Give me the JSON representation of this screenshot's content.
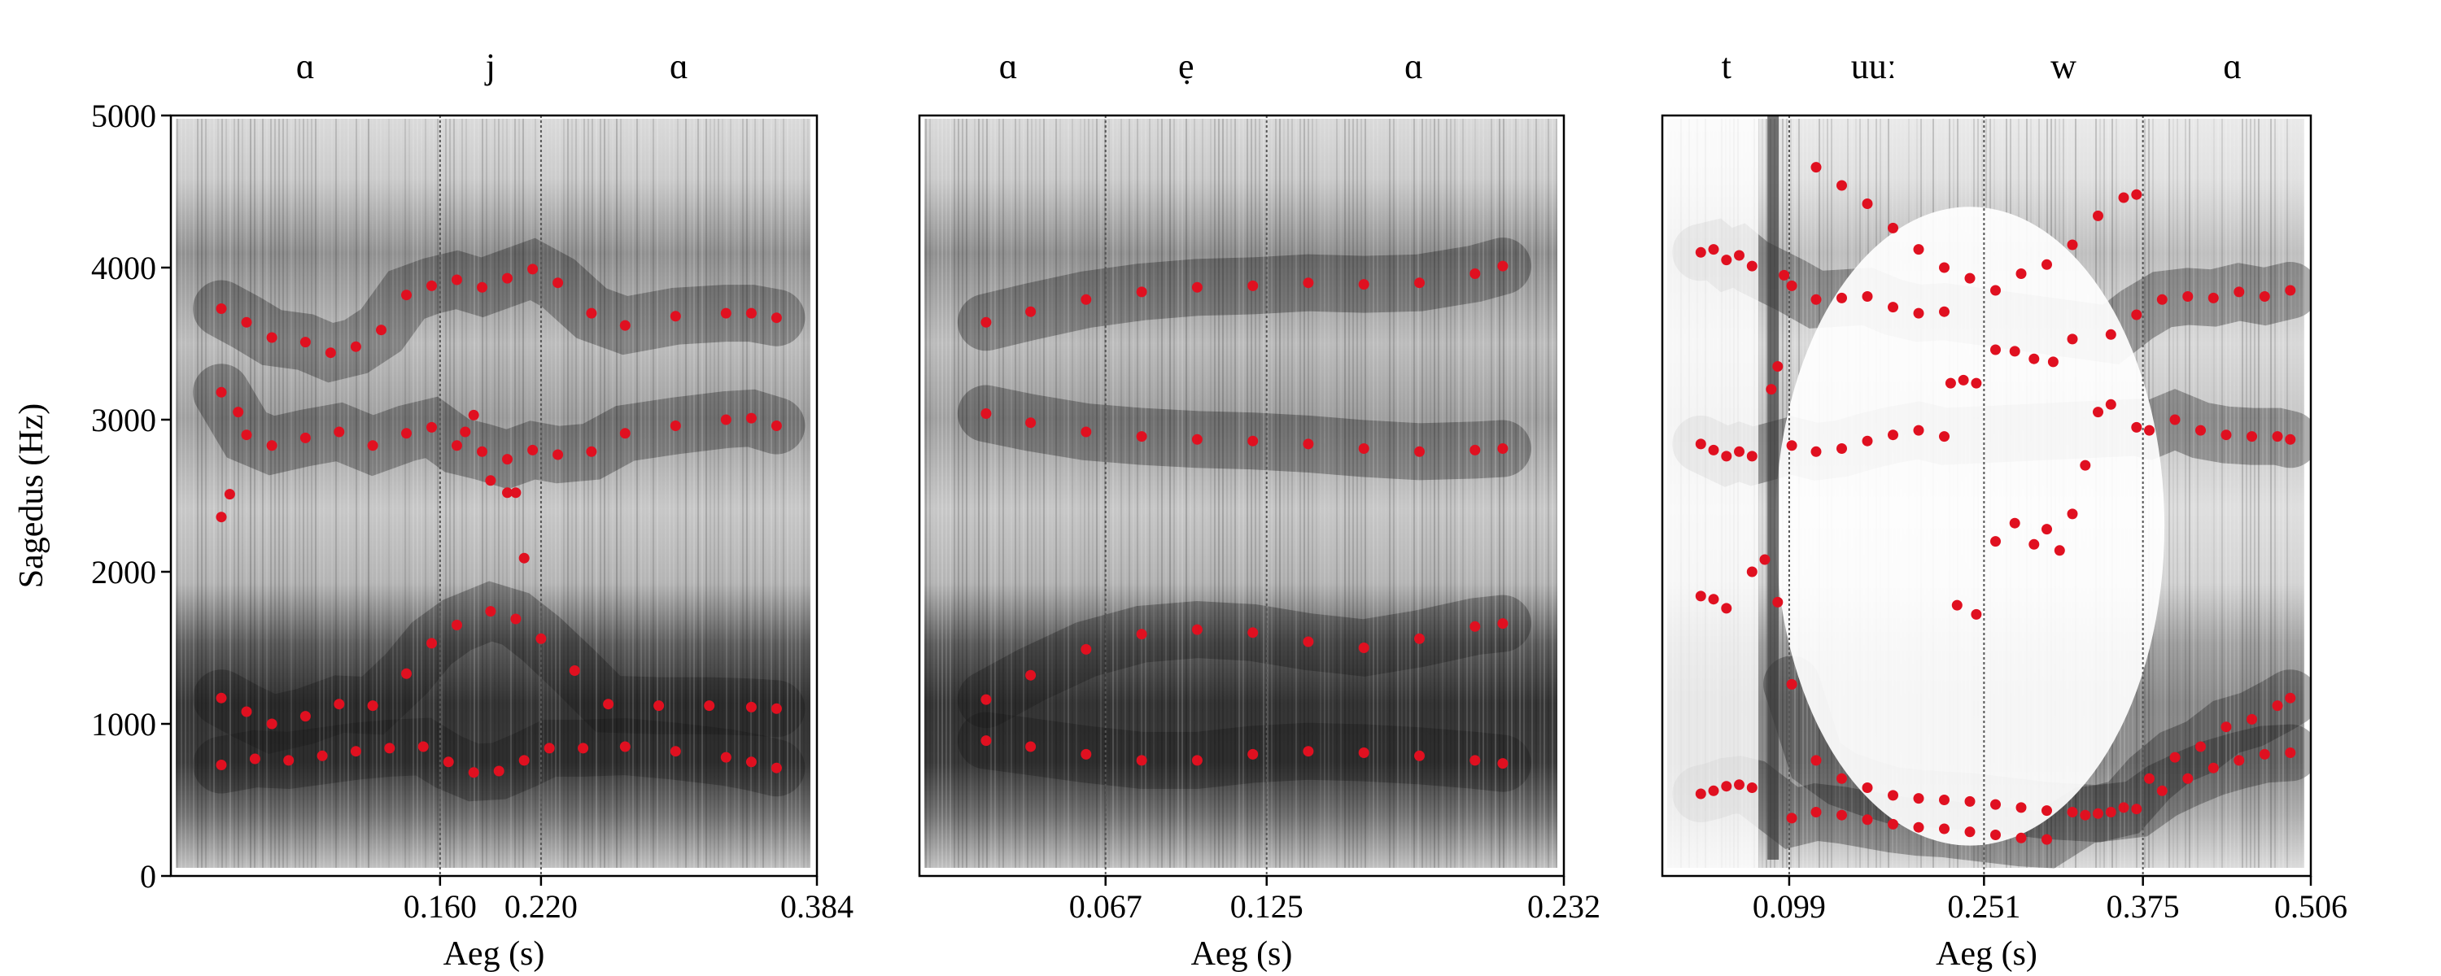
{
  "colors": {
    "formant": "#e01020",
    "spectrogram": "#1a1a1a",
    "axis": "#000000",
    "boundary": "#555555"
  },
  "chart_data": [
    {
      "type": "scatter",
      "xlabel": "Aeg (s)",
      "ylabel": "Sagedus (Hz)",
      "xlim": [
        0,
        0.384
      ],
      "ylim": [
        0,
        5000
      ],
      "yticks": [
        0,
        1000,
        2000,
        3000,
        4000,
        5000
      ],
      "xticks": [
        0.16,
        0.22,
        0.384
      ],
      "xtick_labels": [
        "0.160",
        "0.220",
        "0.384"
      ],
      "boundaries": [
        0.16,
        0.22
      ],
      "segments": [
        {
          "label": "ɑ",
          "mid": 0.08
        },
        {
          "label": "j",
          "mid": 0.19
        },
        {
          "label": "ɑ",
          "mid": 0.302
        }
      ],
      "series": [
        {
          "x": [
            0.03,
            0.05,
            0.07,
            0.09,
            0.11,
            0.13,
            0.15,
            0.165,
            0.18,
            0.195,
            0.21,
            0.225,
            0.245,
            0.27,
            0.3,
            0.33,
            0.345,
            0.36
          ],
          "y": [
            730,
            770,
            760,
            790,
            820,
            840,
            850,
            750,
            680,
            690,
            760,
            840,
            840,
            850,
            820,
            780,
            750,
            710
          ]
        },
        {
          "x": [
            0.03,
            0.045,
            0.06,
            0.08,
            0.1,
            0.12,
            0.14,
            0.155,
            0.17,
            0.19,
            0.205,
            0.22,
            0.24,
            0.26,
            0.29,
            0.32,
            0.345,
            0.36
          ],
          "y": [
            1170,
            1080,
            1000,
            1050,
            1130,
            1120,
            1330,
            1530,
            1650,
            1740,
            1690,
            1560,
            1350,
            1130,
            1120,
            1120,
            1110,
            1100
          ]
        },
        {
          "x": [
            0.03,
            0.045,
            0.06,
            0.08,
            0.1,
            0.12,
            0.14,
            0.155,
            0.17,
            0.185,
            0.2,
            0.215,
            0.23,
            0.25,
            0.27,
            0.3,
            0.33,
            0.345,
            0.36
          ],
          "y": [
            3180,
            2900,
            2830,
            2880,
            2920,
            2830,
            2910,
            2950,
            2830,
            2790,
            2740,
            2800,
            2770,
            2790,
            2910,
            2960,
            3000,
            3010,
            2960
          ]
        },
        {
          "x": [
            0.03,
            0.045,
            0.06,
            0.08,
            0.095,
            0.11,
            0.125,
            0.14,
            0.155,
            0.17,
            0.185,
            0.2,
            0.215,
            0.23,
            0.25,
            0.27,
            0.3,
            0.33,
            0.345,
            0.36
          ],
          "y": [
            3730,
            3640,
            3540,
            3510,
            3440,
            3480,
            3590,
            3820,
            3880,
            3920,
            3870,
            3930,
            3990,
            3900,
            3700,
            3620,
            3680,
            3700,
            3700,
            3670
          ]
        },
        {
          "x": [
            0.03,
            0.035,
            0.04,
            0.175,
            0.18,
            0.19,
            0.2,
            0.205,
            0.21
          ],
          "y": [
            2360,
            2510,
            3050,
            2920,
            3030,
            2600,
            2520,
            2520,
            2090
          ]
        }
      ]
    },
    {
      "type": "scatter",
      "xlabel": "Aeg (s)",
      "ylabel": "",
      "xlim": [
        0,
        0.232
      ],
      "ylim": [
        0,
        5000
      ],
      "xticks": [
        0.067,
        0.125,
        0.232
      ],
      "xtick_labels": [
        "0.067",
        "0.125",
        "0.232"
      ],
      "boundaries": [
        0.067,
        0.125
      ],
      "segments": [
        {
          "label": "ɑ",
          "mid": 0.032
        },
        {
          "label": "ẹ",
          "mid": 0.096
        },
        {
          "label": "ɑ",
          "mid": 0.178
        }
      ],
      "series": [
        {
          "x": [
            0.024,
            0.04,
            0.06,
            0.08,
            0.1,
            0.12,
            0.14,
            0.16,
            0.18,
            0.2,
            0.21
          ],
          "y": [
            890,
            850,
            800,
            760,
            760,
            800,
            820,
            810,
            790,
            760,
            740
          ]
        },
        {
          "x": [
            0.024,
            0.04,
            0.06,
            0.08,
            0.1,
            0.12,
            0.14,
            0.16,
            0.18,
            0.2,
            0.21
          ],
          "y": [
            1160,
            1320,
            1490,
            1590,
            1620,
            1600,
            1540,
            1500,
            1560,
            1640,
            1660
          ]
        },
        {
          "x": [
            0.024,
            0.04,
            0.06,
            0.08,
            0.1,
            0.12,
            0.14,
            0.16,
            0.18,
            0.2,
            0.21
          ],
          "y": [
            3040,
            2980,
            2920,
            2890,
            2870,
            2860,
            2840,
            2810,
            2790,
            2800,
            2810
          ]
        },
        {
          "x": [
            0.024,
            0.04,
            0.06,
            0.08,
            0.1,
            0.12,
            0.14,
            0.16,
            0.18,
            0.2,
            0.21
          ],
          "y": [
            3640,
            3710,
            3790,
            3840,
            3870,
            3880,
            3900,
            3890,
            3900,
            3960,
            4010
          ]
        }
      ]
    },
    {
      "type": "scatter",
      "xlabel": "Aeg (s)",
      "ylabel": "",
      "xlim": [
        0,
        0.506
      ],
      "ylim": [
        0,
        5000
      ],
      "xticks": [
        0.099,
        0.251,
        0.375,
        0.506
      ],
      "xtick_labels": [
        "0.099",
        "0.251",
        "0.375",
        "0.506"
      ],
      "boundaries": [
        0.099,
        0.251,
        0.375
      ],
      "segments": [
        {
          "label": "t",
          "mid": 0.05
        },
        {
          "label": "uuː",
          "mid": 0.165
        },
        {
          "label": "w",
          "mid": 0.313
        },
        {
          "label": "ɑ",
          "mid": 0.445
        }
      ],
      "series": [
        {
          "x": [
            0.03,
            0.04,
            0.05,
            0.06,
            0.07,
            0.101,
            0.12,
            0.14,
            0.16,
            0.18,
            0.2,
            0.22,
            0.24,
            0.26,
            0.28,
            0.3,
            0.33,
            0.35,
            0.37,
            0.39,
            0.41,
            0.43,
            0.45,
            0.47,
            0.49
          ],
          "y": [
            540,
            560,
            590,
            600,
            580,
            380,
            420,
            400,
            370,
            340,
            320,
            310,
            290,
            270,
            250,
            240,
            400,
            420,
            440,
            560,
            640,
            710,
            760,
            800,
            810
          ]
        },
        {
          "x": [
            0.101,
            0.12,
            0.14,
            0.16,
            0.18,
            0.2,
            0.22,
            0.24,
            0.26,
            0.28,
            0.3,
            0.32,
            0.34,
            0.36,
            0.38,
            0.4,
            0.42,
            0.44,
            0.46,
            0.48,
            0.49
          ],
          "y": [
            1260,
            760,
            640,
            580,
            530,
            510,
            500,
            490,
            470,
            450,
            430,
            420,
            410,
            450,
            640,
            780,
            850,
            980,
            1030,
            1120,
            1170
          ]
        },
        {
          "x": [
            0.03,
            0.04,
            0.05,
            0.06,
            0.07,
            0.101,
            0.12,
            0.14,
            0.16,
            0.18,
            0.2,
            0.22,
            0.37,
            0.38,
            0.4,
            0.42,
            0.44,
            0.46,
            0.48,
            0.49
          ],
          "y": [
            2840,
            2800,
            2760,
            2790,
            2760,
            2830,
            2790,
            2810,
            2860,
            2900,
            2930,
            2890,
            2950,
            2930,
            3000,
            2930,
            2900,
            2890,
            2890,
            2870
          ]
        },
        {
          "x": [
            0.03,
            0.04,
            0.05,
            0.06,
            0.07,
            0.101,
            0.12,
            0.14,
            0.16,
            0.18,
            0.2,
            0.22,
            0.35,
            0.37,
            0.39,
            0.41,
            0.43,
            0.45,
            0.47,
            0.49
          ],
          "y": [
            4100,
            4120,
            4050,
            4080,
            4010,
            3880,
            3790,
            3800,
            3810,
            3740,
            3700,
            3710,
            3560,
            3690,
            3790,
            3810,
            3800,
            3840,
            3810,
            3850
          ]
        },
        {
          "x": [
            0.12,
            0.14,
            0.16,
            0.18,
            0.2,
            0.22,
            0.24,
            0.26,
            0.28,
            0.3,
            0.32,
            0.34,
            0.36,
            0.37
          ],
          "y": [
            4660,
            4540,
            4420,
            4260,
            4120,
            4000,
            3930,
            3850,
            3960,
            4020,
            4150,
            4340,
            4460,
            4480
          ]
        },
        {
          "x": [
            0.03,
            0.04,
            0.05,
            0.07,
            0.08,
            0.09,
            0.23,
            0.245,
            0.26,
            0.275,
            0.29,
            0.3,
            0.31,
            0.32,
            0.33,
            0.34,
            0.35
          ],
          "y": [
            1840,
            1820,
            1760,
            2000,
            2080,
            1800,
            1780,
            1720,
            2200,
            2320,
            2180,
            2280,
            2140,
            2380,
            2700,
            3050,
            3100
          ]
        },
        {
          "x": [
            0.085,
            0.09,
            0.095,
            0.225,
            0.235,
            0.245,
            0.26,
            0.275,
            0.29,
            0.305,
            0.32
          ],
          "y": [
            3200,
            3350,
            3950,
            3240,
            3260,
            3240,
            3460,
            3450,
            3400,
            3380,
            3530
          ]
        }
      ]
    }
  ]
}
